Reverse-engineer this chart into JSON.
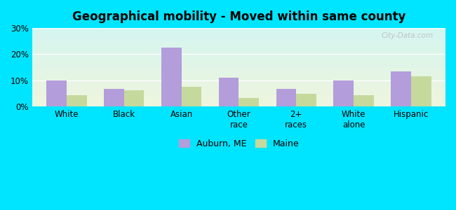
{
  "title": "Geographical mobility - Moved within same county",
  "categories": [
    "White",
    "Black",
    "Asian",
    "Other\nrace",
    "2+\nraces",
    "White\nalone",
    "Hispanic"
  ],
  "auburn_values": [
    9.8,
    6.8,
    22.5,
    11.0,
    6.8,
    10.0,
    13.5
  ],
  "maine_values": [
    4.2,
    6.2,
    7.5,
    3.2,
    4.8,
    4.2,
    11.5
  ],
  "auburn_color": "#b39ddb",
  "maine_color": "#c5d99d",
  "ylim": [
    0,
    30
  ],
  "yticks": [
    0,
    10,
    20,
    30
  ],
  "ytick_labels": [
    "0%",
    "10%",
    "20%",
    "30%"
  ],
  "bar_width": 0.35,
  "bg_top": "#d4f5f0",
  "bg_bottom": "#eef5dd",
  "outer_background": "#00e5ff",
  "legend_auburn": "Auburn, ME",
  "legend_maine": "Maine",
  "watermark": "City-Data.com"
}
